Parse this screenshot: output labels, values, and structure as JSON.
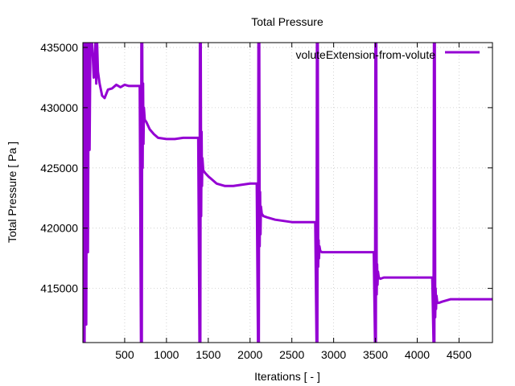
{
  "chart_data": {
    "type": "line",
    "title": "Total Pressure",
    "xlabel": "Iterations [ - ]",
    "ylabel": "Total Pressure [ Pa ]",
    "xlim": [
      0,
      4900
    ],
    "ylim": [
      410500,
      435400
    ],
    "grid": true,
    "legend_position": "top-right",
    "x_ticks": [
      500,
      1000,
      1500,
      2000,
      2500,
      3000,
      3500,
      4000,
      4500
    ],
    "x_tick_labels": [
      "500",
      "1000",
      "1500",
      "2000",
      "2500",
      "3000",
      "3500",
      "4000",
      "4500"
    ],
    "y_ticks": [
      415000,
      420000,
      425000,
      430000,
      435000
    ],
    "y_tick_labels": [
      "415000",
      "420000",
      "425000",
      "430000",
      "435000"
    ],
    "series": [
      {
        "name": "voluteExtension-from-volute",
        "color": "#9400d3",
        "x": [
          0,
          10,
          20,
          30,
          40,
          50,
          60,
          70,
          80,
          90,
          100,
          110,
          120,
          130,
          140,
          150,
          160,
          170,
          180,
          200,
          230,
          260,
          300,
          350,
          400,
          450,
          500,
          550,
          600,
          650,
          680,
          695,
          700,
          705,
          710,
          715,
          720,
          725,
          730,
          740,
          760,
          800,
          850,
          900,
          1000,
          1100,
          1200,
          1300,
          1380,
          1395,
          1400,
          1405,
          1410,
          1415,
          1420,
          1425,
          1430,
          1440,
          1460,
          1500,
          1550,
          1600,
          1700,
          1800,
          1900,
          2000,
          2080,
          2095,
          2100,
          2105,
          2110,
          2115,
          2120,
          2125,
          2130,
          2140,
          2160,
          2200,
          2300,
          2400,
          2500,
          2600,
          2700,
          2780,
          2795,
          2800,
          2805,
          2810,
          2815,
          2820,
          2825,
          2830,
          2840,
          2860,
          2900,
          3000,
          3100,
          3200,
          3300,
          3400,
          3480,
          3495,
          3500,
          3505,
          3510,
          3515,
          3520,
          3525,
          3530,
          3540,
          3560,
          3600,
          3700,
          3800,
          3900,
          4000,
          4100,
          4180,
          4195,
          4200,
          4205,
          4210,
          4215,
          4220,
          4225,
          4230,
          4240,
          4260,
          4300,
          4400,
          4500,
          4600,
          4700,
          4800,
          4900
        ],
        "y": [
          410500,
          435400,
          410500,
          435400,
          412000,
          435400,
          418000,
          435400,
          426500,
          435400,
          435400,
          435400,
          434000,
          432500,
          433500,
          435400,
          432000,
          435400,
          433000,
          432000,
          431000,
          430800,
          431500,
          431600,
          431900,
          431700,
          431900,
          431800,
          431800,
          431800,
          431800,
          410500,
          435400,
          410500,
          435400,
          425000,
          432000,
          427000,
          430000,
          429000,
          428800,
          428200,
          427800,
          427500,
          427400,
          427400,
          427500,
          427500,
          427500,
          410500,
          435400,
          410500,
          435400,
          421000,
          428000,
          423500,
          425800,
          424800,
          424600,
          424300,
          424000,
          423700,
          423500,
          423500,
          423600,
          423700,
          423700,
          410500,
          435400,
          410500,
          435400,
          418500,
          423000,
          419500,
          421800,
          421200,
          421000,
          420900,
          420700,
          420600,
          420500,
          420500,
          420500,
          420500,
          410500,
          435400,
          410500,
          435400,
          416800,
          419000,
          417500,
          418500,
          418100,
          418000,
          418000,
          418000,
          418000,
          418000,
          418000,
          418000,
          418000,
          410500,
          435400,
          410500,
          435400,
          414500,
          417000,
          415300,
          416400,
          415900,
          415800,
          415900,
          415900,
          415900,
          415900,
          415900,
          415900,
          415900,
          410500,
          435400,
          410500,
          435400,
          412600,
          415000,
          413300,
          414400,
          413800,
          413800,
          413900,
          414100,
          414100,
          414100,
          414100,
          414100,
          414100
        ]
      }
    ]
  }
}
